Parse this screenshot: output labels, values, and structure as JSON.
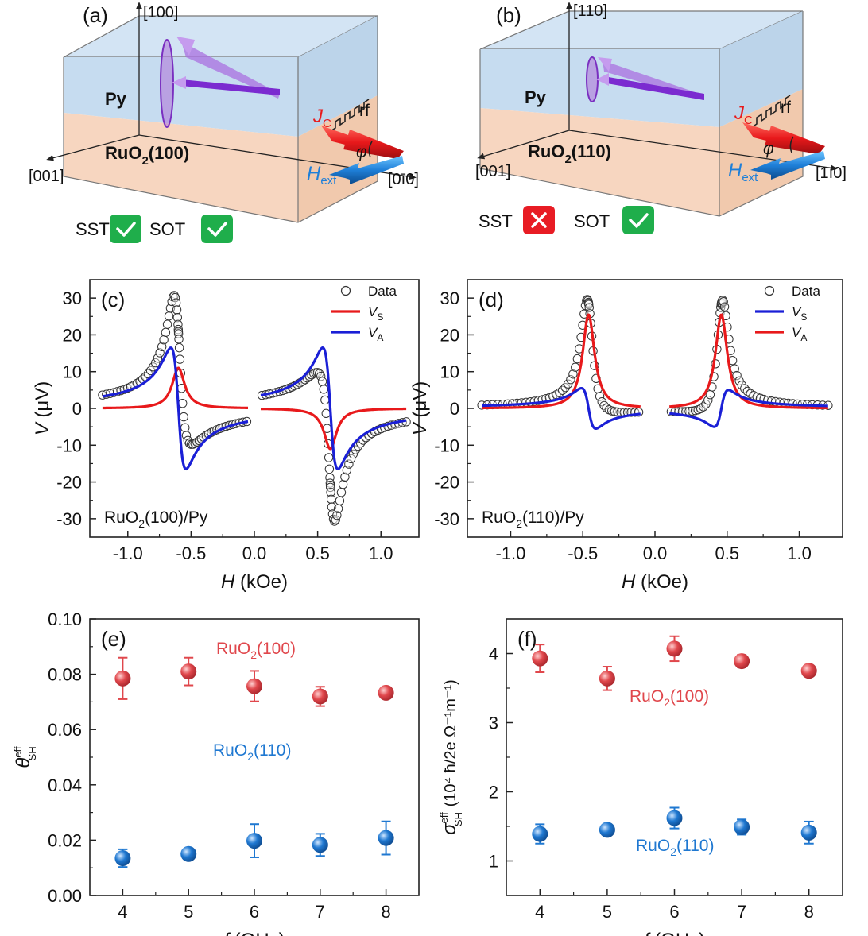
{
  "diagrams": [
    {
      "panel": "(a)",
      "axis_up": "[100]",
      "axis_left": "[001]",
      "axis_right": "[0ī0]",
      "layer_top": "Py",
      "layer_bottom_base": "RuO",
      "layer_bottom_sub": "2",
      "layer_bottom_tail": "(100)",
      "jc_main": "J",
      "jc_sub": "C",
      "hext_main": "H",
      "hext_sub": "ext",
      "rf": "rf",
      "phi": "φ",
      "sst_label": "SST",
      "sot_label": "SOT",
      "sst_ok": true,
      "sot_ok": true
    },
    {
      "panel": "(b)",
      "axis_up": "[110]",
      "axis_left": "[001]",
      "axis_right": "[1ī0]",
      "layer_top": "Py",
      "layer_bottom_base": "RuO",
      "layer_bottom_sub": "2",
      "layer_bottom_tail": "(110)",
      "jc_main": "J",
      "jc_sub": "C",
      "hext_main": "H",
      "hext_sub": "ext",
      "rf": "rf",
      "phi": "φ",
      "sst_label": "SST",
      "sot_label": "SOT",
      "sst_ok": false,
      "sot_ok": true
    }
  ],
  "colors": {
    "red": "#e8191b",
    "blue": "#1a1fd6",
    "red_marker": "#e0474c",
    "blue_marker": "#1f78d1",
    "purple": "#8a3fd1",
    "check": "#1fae4b",
    "cross": "#e81c24",
    "py_fill": "#cfe2f3",
    "ruo2_fill": "#f8d9c3"
  },
  "chart_data": [
    {
      "panel": "(c)",
      "type": "line",
      "sample_base": "RuO",
      "sample_sub": "2",
      "sample_tail": "(100)/Py",
      "xlabel_main": "H",
      "xlabel_unit": "(kOe)",
      "ylabel_main": "V",
      "ylabel_unit": "(μV)",
      "xlim": [
        -1.3,
        1.3
      ],
      "ylim": [
        -35,
        35
      ],
      "xticks": [
        "-1.0",
        "-0.5",
        "0.0",
        "0.5",
        "1.0"
      ],
      "xtick_values": [
        -1.0,
        -0.5,
        0.0,
        0.5,
        1.0
      ],
      "yticks": [
        "-30",
        "-20",
        "-10",
        "0",
        "10",
        "20",
        "30"
      ],
      "ytick_values": [
        -30,
        -20,
        -10,
        0,
        10,
        20,
        30
      ],
      "legend": [
        {
          "label": "Data",
          "kind": "marker"
        },
        {
          "label": "V",
          "sub": "S",
          "kind": "line",
          "color": "#e8191b"
        },
        {
          "label": "V",
          "sub": "A",
          "kind": "line",
          "color": "#1a1fd6"
        }
      ],
      "segments": [
        {
          "x_range": [
            -1.2,
            -0.05
          ],
          "h0": -0.6,
          "dH": 0.06,
          "amp_s": 11,
          "amp_a": 16.5,
          "data_scale": 1.5,
          "data_center": -0.6
        },
        {
          "x_range": [
            0.05,
            1.2
          ],
          "h0": 0.6,
          "dH": 0.06,
          "amp_s": -11,
          "amp_a": 16.5,
          "data_scale": 1.5,
          "data_center": 0.6
        }
      ],
      "series": [
        {
          "name": "Data",
          "style": "open-circle"
        },
        {
          "name": "V_S",
          "color": "#e8191b",
          "role": "symmetric"
        },
        {
          "name": "V_A",
          "color": "#1a1fd6",
          "role": "antisymmetric"
        }
      ]
    },
    {
      "panel": "(d)",
      "type": "line",
      "sample_base": "RuO",
      "sample_sub": "2",
      "sample_tail": "(110)/Py",
      "xlabel_main": "H",
      "xlabel_unit": "(kOe)",
      "ylabel_main": "V",
      "ylabel_unit": "(μV)",
      "xlim": [
        -1.3,
        1.3
      ],
      "ylim": [
        -35,
        35
      ],
      "xticks": [
        "-1.0",
        "-0.5",
        "0.0",
        "0.5",
        "1.0"
      ],
      "xtick_values": [
        -1.0,
        -0.5,
        0.0,
        0.5,
        1.0
      ],
      "yticks": [
        "-30",
        "-20",
        "-10",
        "0",
        "10",
        "20",
        "30"
      ],
      "ytick_values": [
        -30,
        -20,
        -10,
        0,
        10,
        20,
        30
      ],
      "legend": [
        {
          "label": "Data",
          "kind": "marker"
        },
        {
          "label": "V",
          "sub": "S",
          "kind": "line",
          "color": "#1a1fd6"
        },
        {
          "label": "V",
          "sub": "A",
          "kind": "line",
          "color": "#e8191b"
        }
      ],
      "segments": [
        {
          "x_range": [
            -1.2,
            -0.1
          ],
          "h0": -0.46,
          "dH": 0.05,
          "amp_s": 25.5,
          "amp_a": 5.5,
          "data_scale": 1.12,
          "data_center": -0.46
        },
        {
          "x_range": [
            0.1,
            1.2
          ],
          "h0": 0.46,
          "dH": 0.05,
          "amp_s": 25.5,
          "amp_a": -5,
          "data_scale": 1.12,
          "data_center": 0.46
        }
      ],
      "series": [
        {
          "name": "Data",
          "style": "open-circle"
        },
        {
          "name": "V_S",
          "color": "#1a1fd6",
          "role": "antisymmetric"
        },
        {
          "name": "V_A",
          "color": "#e8191b",
          "role": "symmetric"
        }
      ]
    },
    {
      "panel": "(e)",
      "type": "scatter",
      "xlabel_main": "f",
      "xlabel_unit": "(GHz)",
      "ylabel": "θ",
      "ylabel_sup": "eff",
      "ylabel_sub": "SH",
      "xlim": [
        3.5,
        8.5
      ],
      "ylim": [
        0,
        0.1
      ],
      "xticks": [
        "4",
        "5",
        "6",
        "7",
        "8"
      ],
      "xtick_values": [
        4,
        5,
        6,
        7,
        8
      ],
      "yticks": [
        "0.00",
        "0.02",
        "0.04",
        "0.06",
        "0.08",
        "0.10"
      ],
      "ytick_values": [
        0,
        0.02,
        0.04,
        0.06,
        0.08,
        0.1
      ],
      "series": [
        {
          "name_base": "RuO",
          "name_sub": "2",
          "name_tail": "(100)",
          "color": "#e0474c",
          "x": [
            4,
            5,
            6,
            7,
            8
          ],
          "y": [
            0.0785,
            0.081,
            0.0757,
            0.072,
            0.0733
          ],
          "err": [
            0.0075,
            0.005,
            0.0055,
            0.0035,
            0.0012
          ]
        },
        {
          "name_base": "RuO",
          "name_sub": "2",
          "name_tail": "(110)",
          "color": "#1f78d1",
          "x": [
            4,
            5,
            6,
            7,
            8
          ],
          "y": [
            0.0135,
            0.015,
            0.0198,
            0.0183,
            0.0208
          ],
          "err": [
            0.0032,
            0.001,
            0.006,
            0.004,
            0.006
          ]
        }
      ]
    },
    {
      "panel": "(f)",
      "type": "scatter",
      "xlabel_main": "f",
      "xlabel_unit": "(GHz)",
      "ylabel": "σ",
      "ylabel_sup": "eff",
      "ylabel_sub": "SH",
      "ylabel_unit": "(10⁴ ħ/2e Ω⁻¹m⁻¹)",
      "xlim": [
        3.5,
        8.5
      ],
      "ylim": [
        0.5,
        4.5
      ],
      "xticks": [
        "4",
        "5",
        "6",
        "7",
        "8"
      ],
      "xtick_values": [
        4,
        5,
        6,
        7,
        8
      ],
      "yticks": [
        "1",
        "2",
        "3",
        "4"
      ],
      "ytick_values": [
        1,
        2,
        3,
        4
      ],
      "series": [
        {
          "name_base": "RuO",
          "name_sub": "2",
          "name_tail": "(100)",
          "color": "#e0474c",
          "x": [
            4,
            5,
            6,
            7,
            8
          ],
          "y": [
            3.93,
            3.64,
            4.07,
            3.89,
            3.75
          ],
          "err": [
            0.2,
            0.17,
            0.18,
            0.09,
            0.06
          ]
        },
        {
          "name_base": "RuO",
          "name_sub": "2",
          "name_tail": "(110)",
          "color": "#1f78d1",
          "x": [
            4,
            5,
            6,
            7,
            8
          ],
          "y": [
            1.39,
            1.45,
            1.62,
            1.49,
            1.41
          ],
          "err": [
            0.14,
            0.04,
            0.15,
            0.11,
            0.16
          ]
        }
      ]
    }
  ]
}
